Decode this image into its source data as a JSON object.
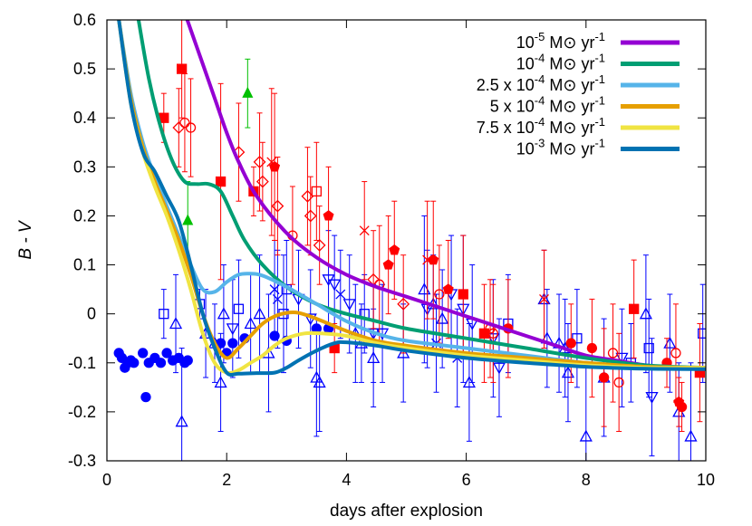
{
  "chart_data": {
    "type": "scatter",
    "title": "",
    "xlabel": "days after explosion",
    "ylabel": "B - V",
    "xlim": [
      0,
      10
    ],
    "ylim": [
      -0.3,
      0.6
    ],
    "xticks": [
      0,
      2,
      4,
      6,
      8,
      10
    ],
    "yticks": [
      -0.3,
      -0.2,
      -0.1,
      0,
      0.1,
      0.2,
      0.3,
      0.4,
      0.5,
      0.6
    ],
    "ytick_labels": [
      "-0.3",
      "-0.2",
      "-0.1",
      "0",
      "0.1",
      "0.2",
      "0.3",
      "0.4",
      "0.5",
      "0.6"
    ],
    "legend_position": "top-right",
    "grid": false,
    "series": [
      {
        "name": "10-5 M⊙ yr-1",
        "legend_base": "10",
        "legend_exp": "-5",
        "legend_unit": " M⊙ yr",
        "legend_unit_exp": "-1",
        "color": "#9400d3",
        "x": [
          1.2,
          1.4,
          1.6,
          1.8,
          2.0,
          2.2,
          2.5,
          3.0,
          3.5,
          4.0,
          4.5,
          5.0,
          5.5,
          6.0,
          6.5,
          7.0,
          7.5,
          8.0,
          8.5,
          9.0,
          9.5,
          10.0
        ],
        "y": [
          0.65,
          0.58,
          0.51,
          0.44,
          0.37,
          0.31,
          0.24,
          0.165,
          0.115,
          0.08,
          0.055,
          0.035,
          0.015,
          -0.005,
          -0.025,
          -0.045,
          -0.065,
          -0.085,
          -0.095,
          -0.105,
          -0.11,
          -0.11
        ]
      },
      {
        "name": "10-4 M⊙ yr-1",
        "legend_base": "10",
        "legend_exp": "-4",
        "legend_unit": " M⊙ yr",
        "legend_unit_exp": "-1",
        "color": "#009e73",
        "x": [
          0.5,
          0.7,
          0.9,
          1.1,
          1.3,
          1.5,
          1.7,
          1.9,
          2.1,
          2.3,
          2.6,
          3.0,
          3.5,
          4.0,
          4.5,
          5.0,
          6.0,
          7.0,
          8.0,
          9.0,
          10.0
        ],
        "y": [
          0.62,
          0.48,
          0.38,
          0.31,
          0.27,
          0.265,
          0.265,
          0.25,
          0.2,
          0.15,
          0.1,
          0.055,
          0.02,
          0.0,
          -0.015,
          -0.03,
          -0.05,
          -0.07,
          -0.09,
          -0.105,
          -0.11
        ]
      },
      {
        "name": "2.5 x 10-4 M⊙ yr-1",
        "legend_base": "2.5 x 10",
        "legend_exp": "-4",
        "legend_unit": " M⊙ yr",
        "legend_unit_exp": "-1",
        "color": "#56b4e9",
        "x": [
          0.2,
          0.4,
          0.6,
          0.8,
          1.0,
          1.2,
          1.4,
          1.6,
          1.8,
          2.0,
          2.2,
          2.4,
          2.6,
          3.0,
          3.5,
          4.0,
          4.5,
          5.0,
          6.0,
          7.0,
          8.0,
          9.0,
          10.0
        ],
        "y": [
          0.6,
          0.45,
          0.35,
          0.28,
          0.22,
          0.16,
          0.1,
          0.05,
          0.045,
          0.065,
          0.08,
          0.082,
          0.078,
          0.055,
          0.02,
          -0.015,
          -0.04,
          -0.055,
          -0.07,
          -0.085,
          -0.1,
          -0.108,
          -0.11
        ]
      },
      {
        "name": "5 x 10-4 M⊙ yr-1",
        "legend_base": "5 x 10",
        "legend_exp": "-4",
        "legend_unit": " M⊙ yr",
        "legend_unit_exp": "-1",
        "color": "#e69f00",
        "x": [
          0.2,
          0.4,
          0.6,
          0.8,
          1.0,
          1.2,
          1.4,
          1.6,
          1.8,
          2.0,
          2.2,
          2.4,
          2.6,
          2.8,
          3.0,
          3.2,
          3.5,
          4.0,
          4.5,
          5.0,
          6.0,
          7.0,
          8.0,
          9.0,
          10.0
        ],
        "y": [
          0.6,
          0.44,
          0.34,
          0.27,
          0.21,
          0.15,
          0.08,
          0.0,
          -0.06,
          -0.09,
          -0.07,
          -0.045,
          -0.02,
          -0.005,
          0.002,
          0.002,
          -0.01,
          -0.035,
          -0.055,
          -0.065,
          -0.08,
          -0.09,
          -0.1,
          -0.108,
          -0.11
        ]
      },
      {
        "name": "7.5 x 10-4 M⊙ yr-1",
        "legend_base": "7.5 x 10",
        "legend_exp": "-4",
        "legend_unit": " M⊙ yr",
        "legend_unit_exp": "-1",
        "color": "#f0e442",
        "x": [
          0.2,
          0.4,
          0.6,
          0.8,
          1.0,
          1.2,
          1.4,
          1.6,
          1.8,
          2.0,
          2.2,
          2.4,
          2.6,
          2.8,
          3.0,
          3.3,
          3.6,
          4.0,
          4.5,
          5.0,
          6.0,
          7.0,
          8.0,
          9.0,
          10.0
        ],
        "y": [
          0.6,
          0.43,
          0.33,
          0.26,
          0.2,
          0.13,
          0.05,
          -0.04,
          -0.1,
          -0.12,
          -0.115,
          -0.1,
          -0.085,
          -0.065,
          -0.05,
          -0.04,
          -0.04,
          -0.045,
          -0.06,
          -0.07,
          -0.085,
          -0.095,
          -0.105,
          -0.11,
          -0.11
        ]
      },
      {
        "name": "10-3 M⊙ yr-1",
        "legend_base": "10",
        "legend_exp": "-3",
        "legend_unit": " M⊙ yr",
        "legend_unit_exp": "-1",
        "color": "#0072b2",
        "x": [
          0.2,
          0.4,
          0.6,
          0.8,
          1.0,
          1.2,
          1.4,
          1.6,
          1.8,
          2.0,
          2.2,
          2.5,
          2.8,
          3.0,
          3.2,
          3.5,
          3.8,
          4.0,
          4.5,
          5.0,
          6.0,
          7.0,
          8.0,
          9.0,
          10.0
        ],
        "y": [
          0.6,
          0.43,
          0.33,
          0.29,
          0.24,
          0.19,
          0.1,
          0.0,
          -0.07,
          -0.12,
          -0.122,
          -0.121,
          -0.12,
          -0.11,
          -0.095,
          -0.075,
          -0.06,
          -0.058,
          -0.065,
          -0.075,
          -0.09,
          -0.1,
          -0.108,
          -0.112,
          -0.113
        ]
      }
    ],
    "observations": {
      "blue_filled_circles": {
        "color": "#0000ff",
        "x": [
          0.2,
          0.25,
          0.3,
          0.35,
          0.4,
          0.45,
          0.6,
          0.65,
          0.7,
          0.8,
          0.9,
          1.0,
          1.1,
          1.2,
          1.3,
          1.35,
          1.9,
          2.0,
          2.1,
          2.3,
          2.8,
          3.0,
          3.5,
          3.7
        ],
        "y": [
          -0.08,
          -0.09,
          -0.11,
          -0.1,
          -0.095,
          -0.1,
          -0.08,
          -0.17,
          -0.1,
          -0.09,
          -0.1,
          -0.08,
          -0.095,
          -0.09,
          -0.1,
          -0.095,
          -0.06,
          -0.08,
          -0.06,
          -0.05,
          -0.045,
          -0.055,
          -0.03,
          -0.03
        ]
      },
      "blue_points": [
        {
          "x": 0.95,
          "y": 0.0,
          "e": 0.05,
          "s": "square"
        },
        {
          "x": 1.15,
          "y": -0.02,
          "e": 0.1,
          "s": "triangle"
        },
        {
          "x": 1.25,
          "y": -0.22,
          "e": 0.15,
          "s": "triangle"
        },
        {
          "x": 1.55,
          "y": 0.02,
          "e": 0.03,
          "s": "square"
        },
        {
          "x": 1.65,
          "y": -0.04,
          "e": 0.09,
          "s": "triangle"
        },
        {
          "x": 1.8,
          "y": -0.06,
          "e": 0.08,
          "s": "triangle"
        },
        {
          "x": 1.9,
          "y": -0.14,
          "e": 0.1,
          "s": "triangle"
        },
        {
          "x": 1.95,
          "y": 0.0,
          "e": 0.1,
          "s": "triangle"
        },
        {
          "x": 2.1,
          "y": -0.03,
          "e": 0.1,
          "s": "invtriangle"
        },
        {
          "x": 2.2,
          "y": 0.01,
          "e": 0.1,
          "s": "square"
        },
        {
          "x": 2.4,
          "y": -0.02,
          "e": 0.1,
          "s": "triangle"
        },
        {
          "x": 2.55,
          "y": 0.0,
          "e": 0.12,
          "s": "triangle"
        },
        {
          "x": 2.7,
          "y": -0.08,
          "e": 0.12,
          "s": "triangle"
        },
        {
          "x": 2.8,
          "y": 0.05,
          "e": 0.1,
          "s": "x"
        },
        {
          "x": 2.85,
          "y": 0.03,
          "e": 0.1,
          "s": "x"
        },
        {
          "x": 2.95,
          "y": 0.0,
          "e": 0.12,
          "s": "square"
        },
        {
          "x": 3.0,
          "y": 0.05,
          "e": 0.1,
          "s": "square"
        },
        {
          "x": 3.2,
          "y": 0.03,
          "e": 0.1,
          "s": "invtriangle"
        },
        {
          "x": 3.4,
          "y": -0.01,
          "e": 0.1,
          "s": "invtriangle"
        },
        {
          "x": 3.5,
          "y": -0.13,
          "e": 0.12,
          "s": "triangle"
        },
        {
          "x": 3.55,
          "y": -0.14,
          "e": 0.1,
          "s": "triangle"
        },
        {
          "x": 3.7,
          "y": 0.07,
          "e": 0.1,
          "s": "invtriangle"
        },
        {
          "x": 3.8,
          "y": 0.06,
          "e": 0.1,
          "s": "invtriangle"
        },
        {
          "x": 3.9,
          "y": 0.04,
          "e": 0.09,
          "s": "x"
        },
        {
          "x": 4.05,
          "y": 0.02,
          "e": 0.1,
          "s": "invtriangle"
        },
        {
          "x": 4.15,
          "y": -0.04,
          "e": 0.1,
          "s": "triangle"
        },
        {
          "x": 4.25,
          "y": -0.06,
          "e": 0.08,
          "s": "triangle"
        },
        {
          "x": 4.3,
          "y": 0.0,
          "e": 0.08,
          "s": "square"
        },
        {
          "x": 4.45,
          "y": -0.04,
          "e": 0.1,
          "s": "invtriangle"
        },
        {
          "x": 4.45,
          "y": -0.09,
          "e": 0.1,
          "s": "triangle"
        },
        {
          "x": 4.6,
          "y": -0.04,
          "e": 0.1,
          "s": "invtriangle"
        },
        {
          "x": 4.95,
          "y": -0.08,
          "e": 0.1,
          "s": "triangle"
        },
        {
          "x": 5.3,
          "y": 0.05,
          "e": 0.15,
          "s": "triangle"
        },
        {
          "x": 5.35,
          "y": 0.01,
          "e": 0.12,
          "s": "invtriangle"
        },
        {
          "x": 5.45,
          "y": 0.02,
          "e": 0.1,
          "s": "triangle"
        },
        {
          "x": 5.5,
          "y": -0.06,
          "e": 0.1,
          "s": "x"
        },
        {
          "x": 5.6,
          "y": -0.01,
          "e": 0.1,
          "s": "triangle"
        },
        {
          "x": 5.75,
          "y": 0.04,
          "e": 0.12,
          "s": "invtriangle"
        },
        {
          "x": 5.85,
          "y": -0.09,
          "e": 0.1,
          "s": "x"
        },
        {
          "x": 5.95,
          "y": 0.01,
          "e": 0.15,
          "s": "invtriangle"
        },
        {
          "x": 6.05,
          "y": -0.14,
          "e": 0.12,
          "s": "triangle"
        },
        {
          "x": 6.1,
          "y": -0.02,
          "e": 0.12,
          "s": "invtriangle"
        },
        {
          "x": 6.45,
          "y": -0.05,
          "e": 0.12,
          "s": "invtriangle"
        },
        {
          "x": 6.55,
          "y": -0.11,
          "e": 0.1,
          "s": "invtriangle"
        },
        {
          "x": 6.7,
          "y": -0.02,
          "e": 0.1,
          "s": "square"
        },
        {
          "x": 7.3,
          "y": 0.03,
          "e": 0.1,
          "s": "triangle"
        },
        {
          "x": 7.35,
          "y": -0.05,
          "e": 0.1,
          "s": "triangle"
        },
        {
          "x": 7.55,
          "y": -0.06,
          "e": 0.1,
          "s": "triangle"
        },
        {
          "x": 7.65,
          "y": -0.07,
          "e": 0.1,
          "s": "triangle"
        },
        {
          "x": 7.7,
          "y": -0.12,
          "e": 0.1,
          "s": "triangle"
        },
        {
          "x": 7.85,
          "y": -0.05,
          "e": 0.1,
          "s": "square"
        },
        {
          "x": 8.0,
          "y": -0.25,
          "e": 0.15,
          "s": "triangle"
        },
        {
          "x": 8.3,
          "y": -0.13,
          "e": 0.12,
          "s": "triangle"
        },
        {
          "x": 8.6,
          "y": -0.09,
          "e": 0.1,
          "s": "invtriangle"
        },
        {
          "x": 8.75,
          "y": -0.1,
          "e": 0.08,
          "s": "square"
        },
        {
          "x": 9.0,
          "y": 0.0,
          "e": 0.12,
          "s": "triangle"
        },
        {
          "x": 9.05,
          "y": -0.07,
          "e": 0.1,
          "s": "square"
        },
        {
          "x": 9.1,
          "y": -0.17,
          "e": 0.12,
          "s": "invtriangle"
        },
        {
          "x": 9.4,
          "y": -0.06,
          "e": 0.1,
          "s": "triangle"
        },
        {
          "x": 9.55,
          "y": -0.2,
          "e": 0.1,
          "s": "triangle"
        },
        {
          "x": 9.75,
          "y": -0.25,
          "e": 0.15,
          "s": "triangle"
        },
        {
          "x": 9.95,
          "y": -0.04,
          "e": 0.1,
          "s": "square"
        }
      ],
      "red_points": [
        {
          "x": 0.95,
          "y": 0.4,
          "e": 0.05,
          "s": "fsquare"
        },
        {
          "x": 1.25,
          "y": 0.5,
          "e": 0.1,
          "s": "fsquare"
        },
        {
          "x": 1.2,
          "y": 0.38,
          "e": 0.08,
          "s": "diamond"
        },
        {
          "x": 1.3,
          "y": 0.39,
          "e": 0.1,
          "s": "circle"
        },
        {
          "x": 1.4,
          "y": 0.38,
          "e": 0.1,
          "s": "circle"
        },
        {
          "x": 1.9,
          "y": 0.27,
          "e": 0.2,
          "s": "fsquare"
        },
        {
          "x": 2.2,
          "y": 0.33,
          "e": 0.1,
          "s": "diamond"
        },
        {
          "x": 2.45,
          "y": 0.25,
          "e": 0.05,
          "s": "fsquare"
        },
        {
          "x": 2.55,
          "y": 0.31,
          "e": 0.1,
          "s": "diamond"
        },
        {
          "x": 2.6,
          "y": 0.27,
          "e": 0.08,
          "s": "diamond"
        },
        {
          "x": 2.75,
          "y": 0.31,
          "e": 0.15,
          "s": "x"
        },
        {
          "x": 2.8,
          "y": 0.3,
          "e": 0.15,
          "s": "pentagon"
        },
        {
          "x": 2.85,
          "y": 0.22,
          "e": 0.1,
          "s": "diamond"
        },
        {
          "x": 3.1,
          "y": 0.16,
          "e": 0.1,
          "s": "circle"
        },
        {
          "x": 3.35,
          "y": 0.24,
          "e": 0.1,
          "s": "diamond"
        },
        {
          "x": 3.4,
          "y": 0.2,
          "e": 0.08,
          "s": "diamond"
        },
        {
          "x": 3.5,
          "y": 0.25,
          "e": 0.1,
          "s": "square"
        },
        {
          "x": 3.55,
          "y": 0.14,
          "e": 0.08,
          "s": "diamond"
        },
        {
          "x": 3.7,
          "y": 0.2,
          "e": 0.1,
          "s": "pentagon"
        },
        {
          "x": 3.8,
          "y": -0.07,
          "e": 0.05,
          "s": "fsquare"
        },
        {
          "x": 4.3,
          "y": 0.17,
          "e": 0.1,
          "s": "x"
        },
        {
          "x": 4.45,
          "y": 0.07,
          "e": 0.1,
          "s": "diamond"
        },
        {
          "x": 4.55,
          "y": 0.06,
          "e": 0.12,
          "s": "circle"
        },
        {
          "x": 4.7,
          "y": 0.1,
          "e": 0.1,
          "s": "pentagon"
        },
        {
          "x": 4.8,
          "y": 0.13,
          "e": 0.1,
          "s": "pentagon"
        },
        {
          "x": 4.95,
          "y": 0.02,
          "e": 0.1,
          "s": "diamond"
        },
        {
          "x": 5.35,
          "y": 0.11,
          "e": 0.12,
          "s": "x"
        },
        {
          "x": 5.45,
          "y": 0.11,
          "e": 0.12,
          "s": "pentagon"
        },
        {
          "x": 5.55,
          "y": 0.04,
          "e": 0.1,
          "s": "circle"
        },
        {
          "x": 5.7,
          "y": 0.05,
          "e": 0.1,
          "s": "pentagon"
        },
        {
          "x": 5.95,
          "y": 0.04,
          "e": 0.12,
          "s": "fsquare"
        },
        {
          "x": 6.3,
          "y": -0.04,
          "e": 0.1,
          "s": "fsquare"
        },
        {
          "x": 6.4,
          "y": -0.03,
          "e": 0.1,
          "s": "circle"
        },
        {
          "x": 6.45,
          "y": -0.04,
          "e": 0.1,
          "s": "circle"
        },
        {
          "x": 6.7,
          "y": -0.03,
          "e": 0.1,
          "s": "fcircle"
        },
        {
          "x": 7.3,
          "y": 0.03,
          "e": 0.1,
          "s": "x"
        },
        {
          "x": 7.75,
          "y": -0.06,
          "e": 0.08,
          "s": "fcircle"
        },
        {
          "x": 8.1,
          "y": -0.07,
          "e": 0.1,
          "s": "fcircle"
        },
        {
          "x": 8.3,
          "y": -0.13,
          "e": 0.1,
          "s": "fcircle"
        },
        {
          "x": 8.45,
          "y": -0.08,
          "e": 0.1,
          "s": "circle"
        },
        {
          "x": 8.55,
          "y": -0.14,
          "e": 0.1,
          "s": "circle"
        },
        {
          "x": 8.8,
          "y": 0.01,
          "e": 0.1,
          "s": "fsquare"
        },
        {
          "x": 9.35,
          "y": -0.1,
          "e": 0.05,
          "s": "fcircle"
        },
        {
          "x": 9.5,
          "y": -0.08,
          "e": 0.1,
          "s": "circle"
        },
        {
          "x": 9.55,
          "y": -0.18,
          "e": 0.05,
          "s": "fpentagon"
        },
        {
          "x": 9.6,
          "y": -0.19,
          "e": 0.05,
          "s": "fcircle"
        },
        {
          "x": 9.9,
          "y": -0.12,
          "e": 0.1,
          "s": "fsquare"
        }
      ],
      "green_triangles": [
        {
          "x": 1.35,
          "y": 0.19,
          "e": 0.08
        },
        {
          "x": 2.35,
          "y": 0.45,
          "e": 0.07
        }
      ]
    }
  }
}
